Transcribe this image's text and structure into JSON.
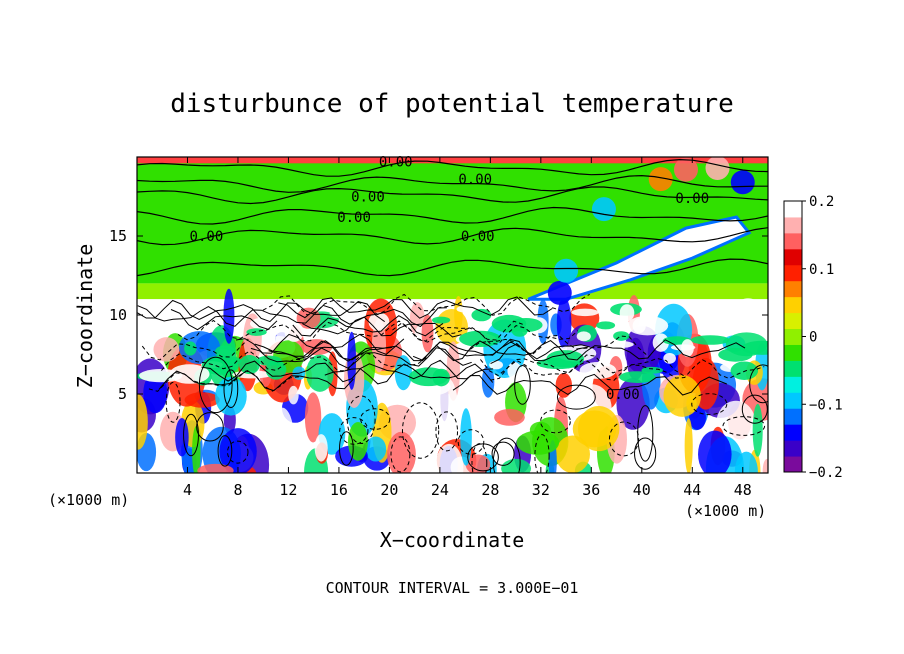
{
  "chart_data": {
    "type": "heatmap",
    "title": "disturbunce of potential temperature",
    "xlabel": "X−coordinate",
    "ylabel": "Z−coordinate",
    "x_unit_left": "(×1000 m)",
    "x_unit_right": "(×1000 m)",
    "footnote": "CONTOUR INTERVAL = 3.000E−01",
    "xlim": [
      0,
      50
    ],
    "ylim": [
      0,
      20
    ],
    "x_ticks": [
      4,
      8,
      12,
      16,
      20,
      24,
      28,
      32,
      36,
      40,
      44,
      48
    ],
    "x_tick_labels": [
      "4",
      "8",
      "12",
      "16",
      "20",
      "24",
      "28",
      "32",
      "36",
      "40",
      "44",
      "48"
    ],
    "y_ticks": [
      5,
      10,
      15
    ],
    "y_tick_labels": [
      "5",
      "10",
      "15"
    ],
    "colorbar": {
      "min": -0.2,
      "max": 0.2,
      "ticks": [
        0.2,
        0.1,
        0,
        -0.1,
        -0.2
      ],
      "tick_labels": [
        "0.2",
        "0.1",
        "0",
        "−0.1",
        "−0.2"
      ],
      "colors": [
        "#7a0b9c",
        "#3a00c8",
        "#0000ff",
        "#0070ff",
        "#00c8ff",
        "#00f0e0",
        "#00e070",
        "#30e000",
        "#90f000",
        "#d8f000",
        "#ffd000",
        "#ff8000",
        "#ff2000",
        "#e00000",
        "#ff6060",
        "#ffb0b0",
        "#ffffff"
      ]
    },
    "contour_labels": [
      {
        "text": "0.00",
        "x": 20.5,
        "z": 19.7
      },
      {
        "text": "0.00",
        "x": 26.8,
        "z": 18.6
      },
      {
        "text": "0.00",
        "x": 18.3,
        "z": 17.5
      },
      {
        "text": "0.00",
        "x": 17.2,
        "z": 16.2
      },
      {
        "text": "0.00",
        "x": 5.5,
        "z": 15.0
      },
      {
        "text": "0.00",
        "x": 27.0,
        "z": 15.0
      },
      {
        "text": "0.00",
        "x": 44.0,
        "z": 17.4
      },
      {
        "text": "0.00",
        "x": 38.5,
        "z": 5.0
      }
    ],
    "regions": [
      {
        "kind": "band",
        "z0": 12.0,
        "z1": 19.9,
        "fill": "#30e000"
      },
      {
        "kind": "band",
        "z0": 11.0,
        "z1": 12.0,
        "fill": "#90f000"
      },
      {
        "kind": "band",
        "z0": 19.6,
        "z1": 20.0,
        "fill": "#ff4040"
      },
      {
        "kind": "band",
        "z0": 10.0,
        "z1": 11.0,
        "fill": "#ffffff"
      }
    ]
  }
}
